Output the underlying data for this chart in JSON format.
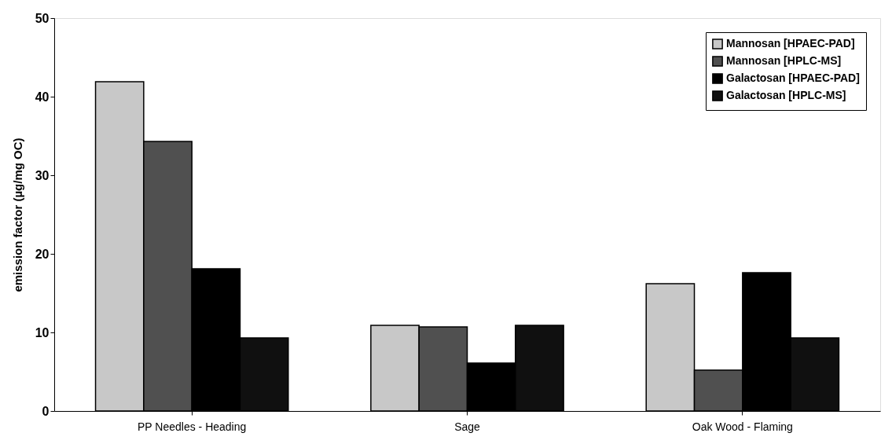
{
  "chart_data": {
    "type": "bar",
    "ylabel": "emission factor (µg/mg OC)",
    "categories": [
      "PP Needles - Heading",
      "Sage",
      "Oak Wood - Flaming"
    ],
    "series": [
      {
        "name": "Mannosan [HPAEC-PAD]",
        "color": "#c8c8c8",
        "values": [
          41.9,
          10.9,
          16.2
        ]
      },
      {
        "name": "Mannosan [HPLC-MS]",
        "color": "#505050",
        "values": [
          34.3,
          10.7,
          5.2
        ]
      },
      {
        "name": "Galactosan [HPAEC-PAD]",
        "color": "#000000",
        "values": [
          18.1,
          6.1,
          17.6
        ]
      },
      {
        "name": "Galactosan [HPLC-MS]",
        "color": "#101010",
        "values": [
          9.3,
          10.9,
          9.3
        ]
      }
    ],
    "ylim": [
      0,
      50
    ],
    "yticks": [
      0,
      10,
      20,
      30,
      40,
      50
    ],
    "grid": false,
    "legend": "top right"
  }
}
